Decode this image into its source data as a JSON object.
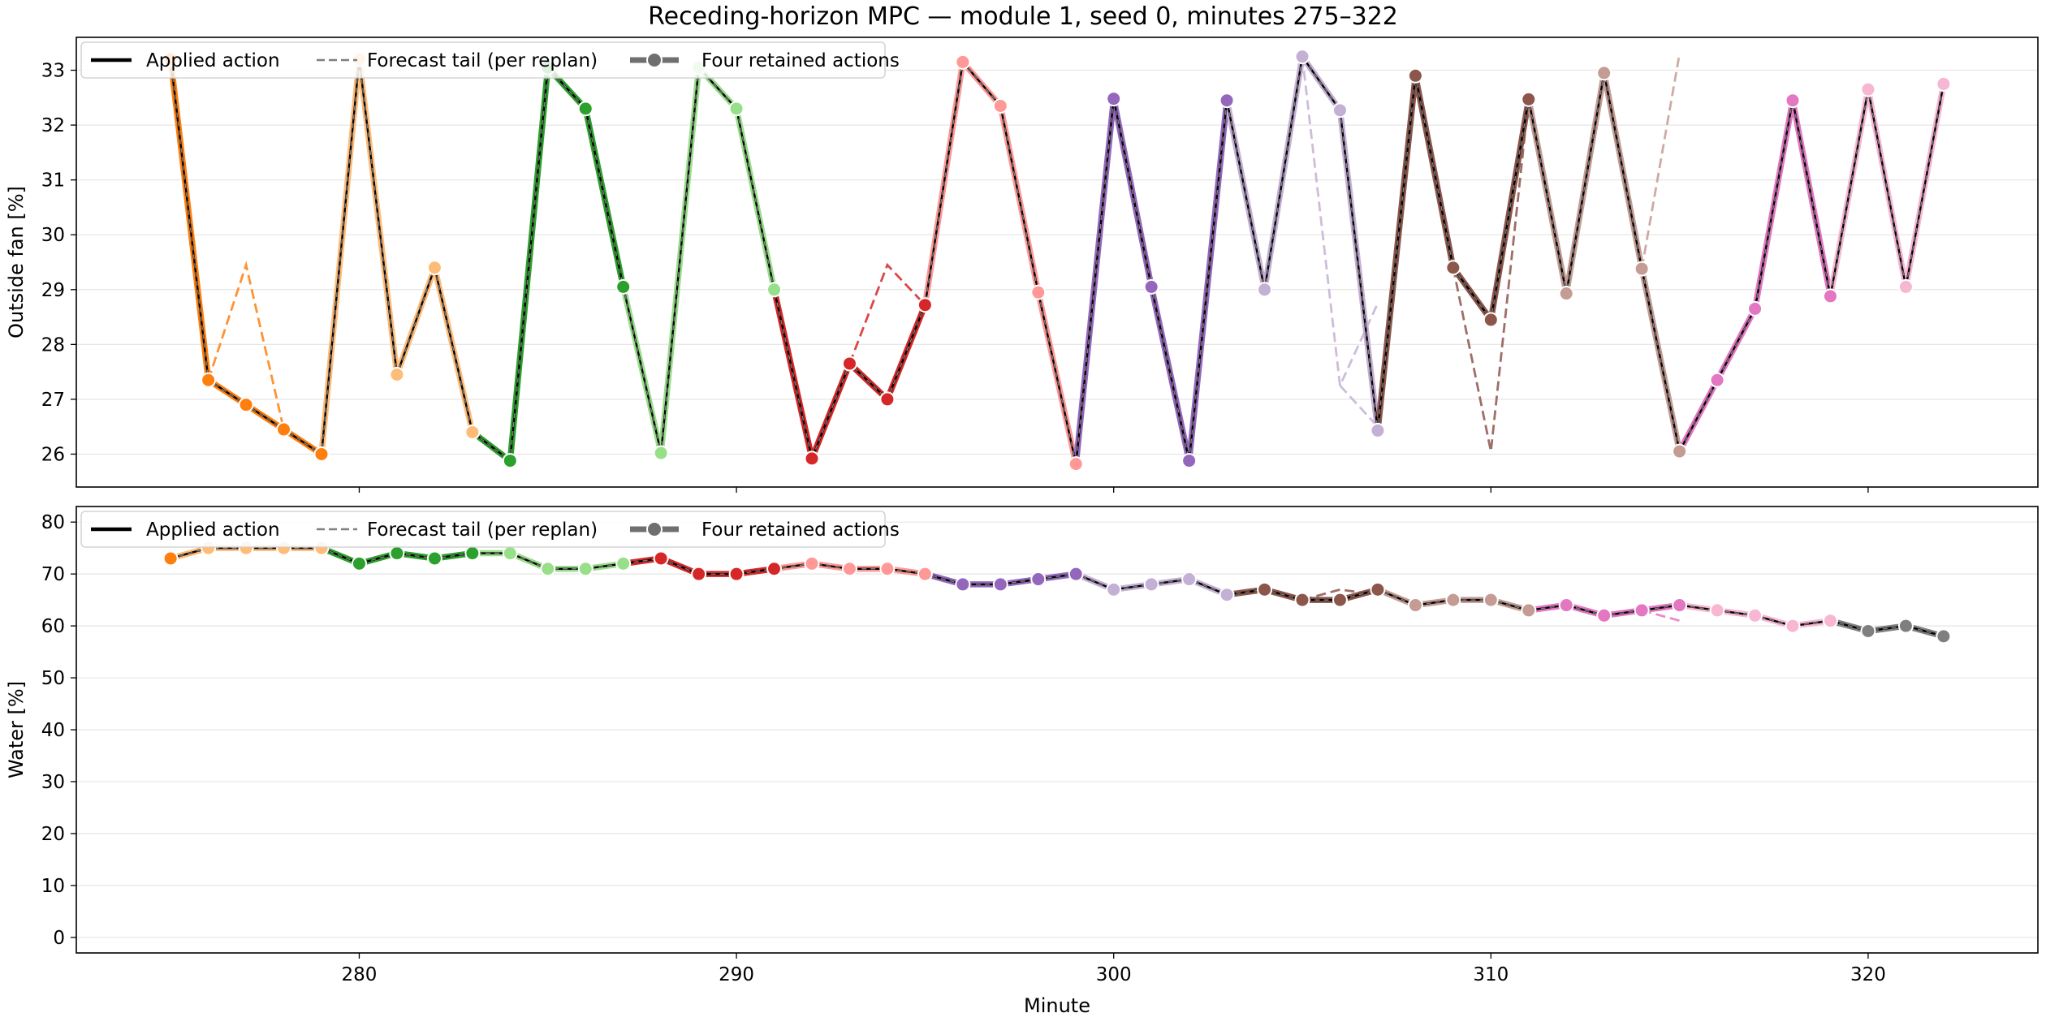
{
  "title": "Receding-horizon MPC — module 1, seed 0, minutes 275–322",
  "xlabel": "Minute",
  "legend": {
    "applied": "Applied action",
    "forecast": "Forecast tail (per replan)",
    "retained": "Four retained actions"
  },
  "palette": [
    "#ff7f0e",
    "#ffbb78",
    "#2ca02c",
    "#98df8a",
    "#d62728",
    "#ff9896",
    "#9467bd",
    "#c5b0d5",
    "#8c564b",
    "#c49c94",
    "#e377c2",
    "#f7b6d2",
    "#7f7f7f"
  ],
  "chart_data": [
    {
      "type": "line",
      "ylabel": "Outside fan [%]",
      "xlim": [
        272.5,
        324.5
      ],
      "ylim": [
        25.4,
        33.6
      ],
      "xticks": [
        280,
        290,
        300,
        310,
        320
      ],
      "yticks": [
        26,
        27,
        28,
        29,
        30,
        31,
        32,
        33
      ],
      "grid": "horizontal",
      "legend_position": "top-left",
      "applied": {
        "x": [
          275,
          276,
          277,
          278,
          279,
          280,
          281,
          282,
          283,
          284,
          285,
          286,
          287,
          288,
          289,
          290,
          291,
          292,
          293,
          294,
          295,
          296,
          297,
          298,
          299,
          300,
          301,
          302,
          303,
          304,
          305,
          306,
          307,
          308,
          309,
          310,
          311,
          312,
          313,
          314,
          315,
          316,
          317,
          318,
          319,
          320,
          321,
          322
        ],
        "y": [
          33.2,
          27.35,
          26.9,
          26.45,
          26.0,
          33.2,
          27.45,
          29.4,
          26.4,
          25.88,
          33.05,
          32.3,
          29.05,
          26.02,
          33.05,
          32.3,
          29.0,
          25.92,
          27.65,
          27.0,
          28.72,
          33.15,
          32.35,
          28.95,
          25.82,
          32.48,
          29.05,
          25.88,
          32.45,
          29.0,
          33.25,
          32.27,
          26.43,
          32.9,
          29.4,
          28.45,
          32.47,
          28.93,
          32.95,
          29.38,
          26.05,
          27.35,
          28.65,
          32.45,
          28.88,
          32.65,
          29.05,
          32.75
        ]
      },
      "retained_segments": [
        {
          "x": [
            275,
            276,
            277,
            278,
            279
          ],
          "y": [
            33.2,
            27.35,
            26.9,
            26.45,
            26.0
          ]
        },
        {
          "x": [
            280,
            281,
            282,
            283
          ],
          "y": [
            33.2,
            27.45,
            29.4,
            26.4
          ]
        },
        {
          "x": [
            284,
            285,
            286,
            287
          ],
          "y": [
            25.88,
            33.05,
            32.3,
            29.05
          ]
        },
        {
          "x": [
            288,
            289,
            290,
            291
          ],
          "y": [
            26.02,
            33.05,
            32.3,
            29.0
          ]
        },
        {
          "x": [
            292,
            293,
            294,
            295
          ],
          "y": [
            25.92,
            27.65,
            27.0,
            28.72
          ]
        },
        {
          "x": [
            296,
            297,
            298,
            299
          ],
          "y": [
            33.15,
            32.35,
            28.95,
            25.82
          ]
        },
        {
          "x": [
            300,
            301,
            302,
            303
          ],
          "y": [
            32.48,
            29.05,
            25.88,
            32.45
          ]
        },
        {
          "x": [
            304,
            305,
            306,
            307
          ],
          "y": [
            29.0,
            33.25,
            32.27,
            26.43
          ]
        },
        {
          "x": [
            308,
            309,
            310,
            311
          ],
          "y": [
            32.9,
            29.4,
            28.45,
            32.47
          ]
        },
        {
          "x": [
            312,
            313,
            314,
            315
          ],
          "y": [
            28.93,
            32.95,
            29.38,
            26.05
          ]
        },
        {
          "x": [
            316,
            317,
            318,
            319
          ],
          "y": [
            27.35,
            28.65,
            32.45,
            28.88
          ]
        },
        {
          "x": [
            320,
            321,
            322
          ],
          "y": [
            32.65,
            29.05,
            32.75
          ]
        }
      ],
      "forecast_tails": [
        {
          "x": [
            276,
            277,
            278
          ],
          "y": [
            27.35,
            29.45,
            26.45
          ]
        },
        {
          "x": [
            293,
            294,
            295
          ],
          "y": [
            27.65,
            29.45,
            28.72
          ]
        },
        {
          "x": [
            305,
            306,
            307
          ],
          "y": [
            33.25,
            27.25,
            28.75
          ]
        },
        {
          "x": [
            306,
            307
          ],
          "y": [
            27.25,
            26.5
          ]
        },
        {
          "x": [
            309,
            310,
            311
          ],
          "y": [
            29.4,
            26.05,
            32.47
          ]
        },
        {
          "x": [
            314,
            315
          ],
          "y": [
            29.38,
            33.3
          ]
        }
      ]
    },
    {
      "type": "line",
      "ylabel": "Water [%]",
      "xlabel": "Minute",
      "xlim": [
        272.5,
        324.5
      ],
      "ylim": [
        -3,
        83
      ],
      "xticks": [
        280,
        290,
        300,
        310,
        320
      ],
      "yticks": [
        0,
        10,
        20,
        30,
        40,
        50,
        60,
        70,
        80
      ],
      "grid": "horizontal",
      "legend_position": "top-left",
      "applied": {
        "x": [
          275,
          276,
          277,
          278,
          279,
          280,
          281,
          282,
          283,
          284,
          285,
          286,
          287,
          288,
          289,
          290,
          291,
          292,
          293,
          294,
          295,
          296,
          297,
          298,
          299,
          300,
          301,
          302,
          303,
          304,
          305,
          306,
          307,
          308,
          309,
          310,
          311,
          312,
          313,
          314,
          315,
          316,
          317,
          318,
          319,
          320,
          321,
          322
        ],
        "y": [
          73,
          75,
          75,
          75,
          75,
          72,
          74,
          73,
          74,
          74,
          71,
          71,
          72,
          73,
          70,
          70,
          71,
          72,
          71,
          71,
          70,
          68,
          68,
          69,
          70,
          67,
          68,
          69,
          66,
          67,
          65,
          65,
          67,
          64,
          65,
          65,
          63,
          64,
          62,
          63,
          64,
          63,
          62,
          60,
          61,
          59,
          60,
          58
        ]
      },
      "retained_segments": [
        {
          "x": [
            275
          ],
          "y": [
            73
          ]
        },
        {
          "x": [
            276,
            277,
            278,
            279
          ],
          "y": [
            75,
            75,
            75,
            75
          ]
        },
        {
          "x": [
            280,
            281,
            282,
            283
          ],
          "y": [
            72,
            74,
            73,
            74
          ]
        },
        {
          "x": [
            284,
            285,
            286,
            287
          ],
          "y": [
            74,
            71,
            71,
            72
          ]
        },
        {
          "x": [
            288,
            289,
            290,
            291
          ],
          "y": [
            73,
            70,
            70,
            71
          ]
        },
        {
          "x": [
            292,
            293,
            294,
            295
          ],
          "y": [
            72,
            71,
            71,
            70
          ]
        },
        {
          "x": [
            296,
            297,
            298,
            299
          ],
          "y": [
            68,
            68,
            69,
            70
          ]
        },
        {
          "x": [
            300,
            301,
            302,
            303
          ],
          "y": [
            67,
            68,
            69,
            66
          ]
        },
        {
          "x": [
            304,
            305,
            306,
            307
          ],
          "y": [
            67,
            65,
            65,
            67
          ]
        },
        {
          "x": [
            308,
            309,
            310,
            311
          ],
          "y": [
            64,
            65,
            65,
            63
          ]
        },
        {
          "x": [
            312,
            313,
            314,
            315
          ],
          "y": [
            64,
            62,
            63,
            64
          ]
        },
        {
          "x": [
            316,
            317,
            318,
            319
          ],
          "y": [
            63,
            62,
            60,
            61
          ]
        },
        {
          "x": [
            320,
            321,
            322
          ],
          "y": [
            59,
            60,
            58
          ]
        }
      ],
      "forecast_tails": [
        {
          "x": [
            305,
            306,
            307
          ],
          "y": [
            65,
            67,
            66
          ]
        },
        {
          "x": [
            314,
            315
          ],
          "y": [
            63,
            61
          ]
        }
      ]
    }
  ]
}
